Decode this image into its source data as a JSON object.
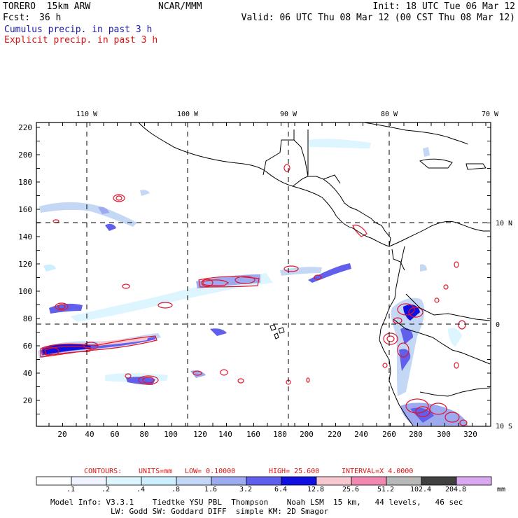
{
  "header": {
    "model": "TORERO  15km ARW",
    "center": "NCAR/MMM",
    "init": "Init: 18 UTC Tue 06 Mar 12",
    "fcst_label": "Fcst:",
    "fcst_value": "36 h",
    "valid": "Valid: 06 UTC Thu 08 Mar 12 (00 CST Thu 08 Mar 12)",
    "field1": "Cumulus precip. in past 3 h",
    "field2": "Explicit precip. in past 3 h"
  },
  "map": {
    "lon_labels": [
      "110 W",
      "100 W",
      "90 W",
      "80 W",
      "70 W"
    ],
    "lat_labels": [
      "10 N",
      "0",
      "10 S"
    ],
    "y_ticks": [
      "220",
      "200",
      "180",
      "160",
      "140",
      "120",
      "100",
      "80",
      "60",
      "40",
      "20"
    ],
    "x_ticks": [
      "20",
      "40",
      "60",
      "80",
      "100",
      "120",
      "140",
      "160",
      "180",
      "200",
      "220",
      "240",
      "260",
      "280",
      "300",
      "320"
    ]
  },
  "contours": {
    "label": "CONTOURS:",
    "units": "UNITS=mm",
    "low": "LOW= 0.10000",
    "high": "HIGH=  25.600",
    "interval": "INTERVAL=X  4.0000"
  },
  "colorbar": {
    "levels": [
      ".1",
      ".2",
      ".4",
      ".8",
      "1.6",
      "3.2",
      "6.4",
      "12.8",
      "25.6",
      "51.2",
      "102.4",
      "204.8"
    ],
    "unit": "mm",
    "colors": [
      "#ffffff",
      "#eef3ff",
      "#dcf5ff",
      "#cceeff",
      "#c4d8f6",
      "#9eaaf0",
      "#6060ec",
      "#1010e0",
      "#f8c8d0",
      "#f088b0",
      "#b8b8b8",
      "#404040",
      "#d8a8f0"
    ]
  },
  "footer": {
    "line1": "Model Info: V3.3.1    Tiedtke YSU PBL  Thompson    Noah LSM  15 km,   44 levels,   46 sec",
    "line2": "LW: Godd SW: Goddard DIFF  simple KM: 2D Smagor"
  }
}
